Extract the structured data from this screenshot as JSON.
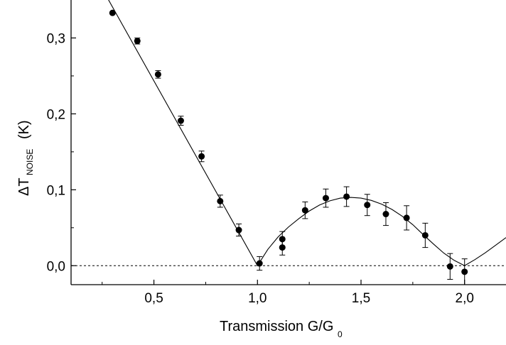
{
  "chart_data": {
    "type": "scatter",
    "title": "",
    "xlabel": {
      "text": "Transmission G/G",
      "subscript": "0"
    },
    "ylabel": {
      "prefix": "ΔT",
      "subscript": "NOISE",
      "unit": "(K)"
    },
    "xlim": [
      0.1,
      2.2
    ],
    "ylim": [
      -0.025,
      0.35
    ],
    "x_ticks": [
      0.5,
      1.0,
      1.5,
      2.0
    ],
    "x_tick_labels": [
      "0,5",
      "1,0",
      "1,5",
      "2,0"
    ],
    "y_ticks": [
      0.0,
      0.1,
      0.2,
      0.3
    ],
    "y_tick_labels": [
      "0,0",
      "0,1",
      "0,2",
      "0,3"
    ],
    "grid": false,
    "legend": "none",
    "reference_line": {
      "y": 0.0,
      "style": "dashed"
    },
    "series": [
      {
        "type": "scatter",
        "marker": "filled-circle",
        "color": "#000000",
        "points": [
          {
            "x": 0.3,
            "y": 0.333,
            "err": 0.0
          },
          {
            "x": 0.42,
            "y": 0.296,
            "err": 0.004
          },
          {
            "x": 0.52,
            "y": 0.252,
            "err": 0.005
          },
          {
            "x": 0.63,
            "y": 0.191,
            "err": 0.006
          },
          {
            "x": 0.73,
            "y": 0.144,
            "err": 0.007
          },
          {
            "x": 0.82,
            "y": 0.085,
            "err": 0.008
          },
          {
            "x": 0.91,
            "y": 0.047,
            "err": 0.008
          },
          {
            "x": 1.01,
            "y": 0.003,
            "err": 0.009
          },
          {
            "x": 1.12,
            "y": 0.035,
            "err": 0.01
          },
          {
            "x": 1.12,
            "y": 0.024,
            "err": 0.01
          },
          {
            "x": 1.23,
            "y": 0.073,
            "err": 0.011
          },
          {
            "x": 1.33,
            "y": 0.089,
            "err": 0.012
          },
          {
            "x": 1.43,
            "y": 0.091,
            "err": 0.013
          },
          {
            "x": 1.53,
            "y": 0.08,
            "err": 0.014
          },
          {
            "x": 1.62,
            "y": 0.068,
            "err": 0.015
          },
          {
            "x": 1.72,
            "y": 0.063,
            "err": 0.016
          },
          {
            "x": 1.81,
            "y": 0.04,
            "err": 0.016
          },
          {
            "x": 1.93,
            "y": -0.001,
            "err": 0.017
          },
          {
            "x": 2.0,
            "y": -0.008,
            "err": 0.017
          }
        ]
      },
      {
        "type": "line",
        "style": "solid",
        "color": "#000000",
        "points": [
          {
            "x": 0.24,
            "y": 0.37
          },
          {
            "x": 1.0,
            "y": 0.0
          },
          {
            "x": 1.05,
            "y": 0.0215
          },
          {
            "x": 1.1,
            "y": 0.038
          },
          {
            "x": 1.15,
            "y": 0.051
          },
          {
            "x": 1.2,
            "y": 0.062
          },
          {
            "x": 1.25,
            "y": 0.072
          },
          {
            "x": 1.3,
            "y": 0.08
          },
          {
            "x": 1.35,
            "y": 0.0855
          },
          {
            "x": 1.4,
            "y": 0.089
          },
          {
            "x": 1.45,
            "y": 0.09
          },
          {
            "x": 1.5,
            "y": 0.089
          },
          {
            "x": 1.55,
            "y": 0.086
          },
          {
            "x": 1.6,
            "y": 0.081
          },
          {
            "x": 1.65,
            "y": 0.074
          },
          {
            "x": 1.7,
            "y": 0.065
          },
          {
            "x": 1.75,
            "y": 0.054
          },
          {
            "x": 1.8,
            "y": 0.041
          },
          {
            "x": 1.85,
            "y": 0.0285
          },
          {
            "x": 1.9,
            "y": 0.0165
          },
          {
            "x": 1.95,
            "y": 0.007
          },
          {
            "x": 2.0,
            "y": 0.0
          },
          {
            "x": 2.05,
            "y": 0.008
          },
          {
            "x": 2.1,
            "y": 0.017
          },
          {
            "x": 2.15,
            "y": 0.027
          },
          {
            "x": 2.2,
            "y": 0.037
          }
        ]
      }
    ]
  }
}
